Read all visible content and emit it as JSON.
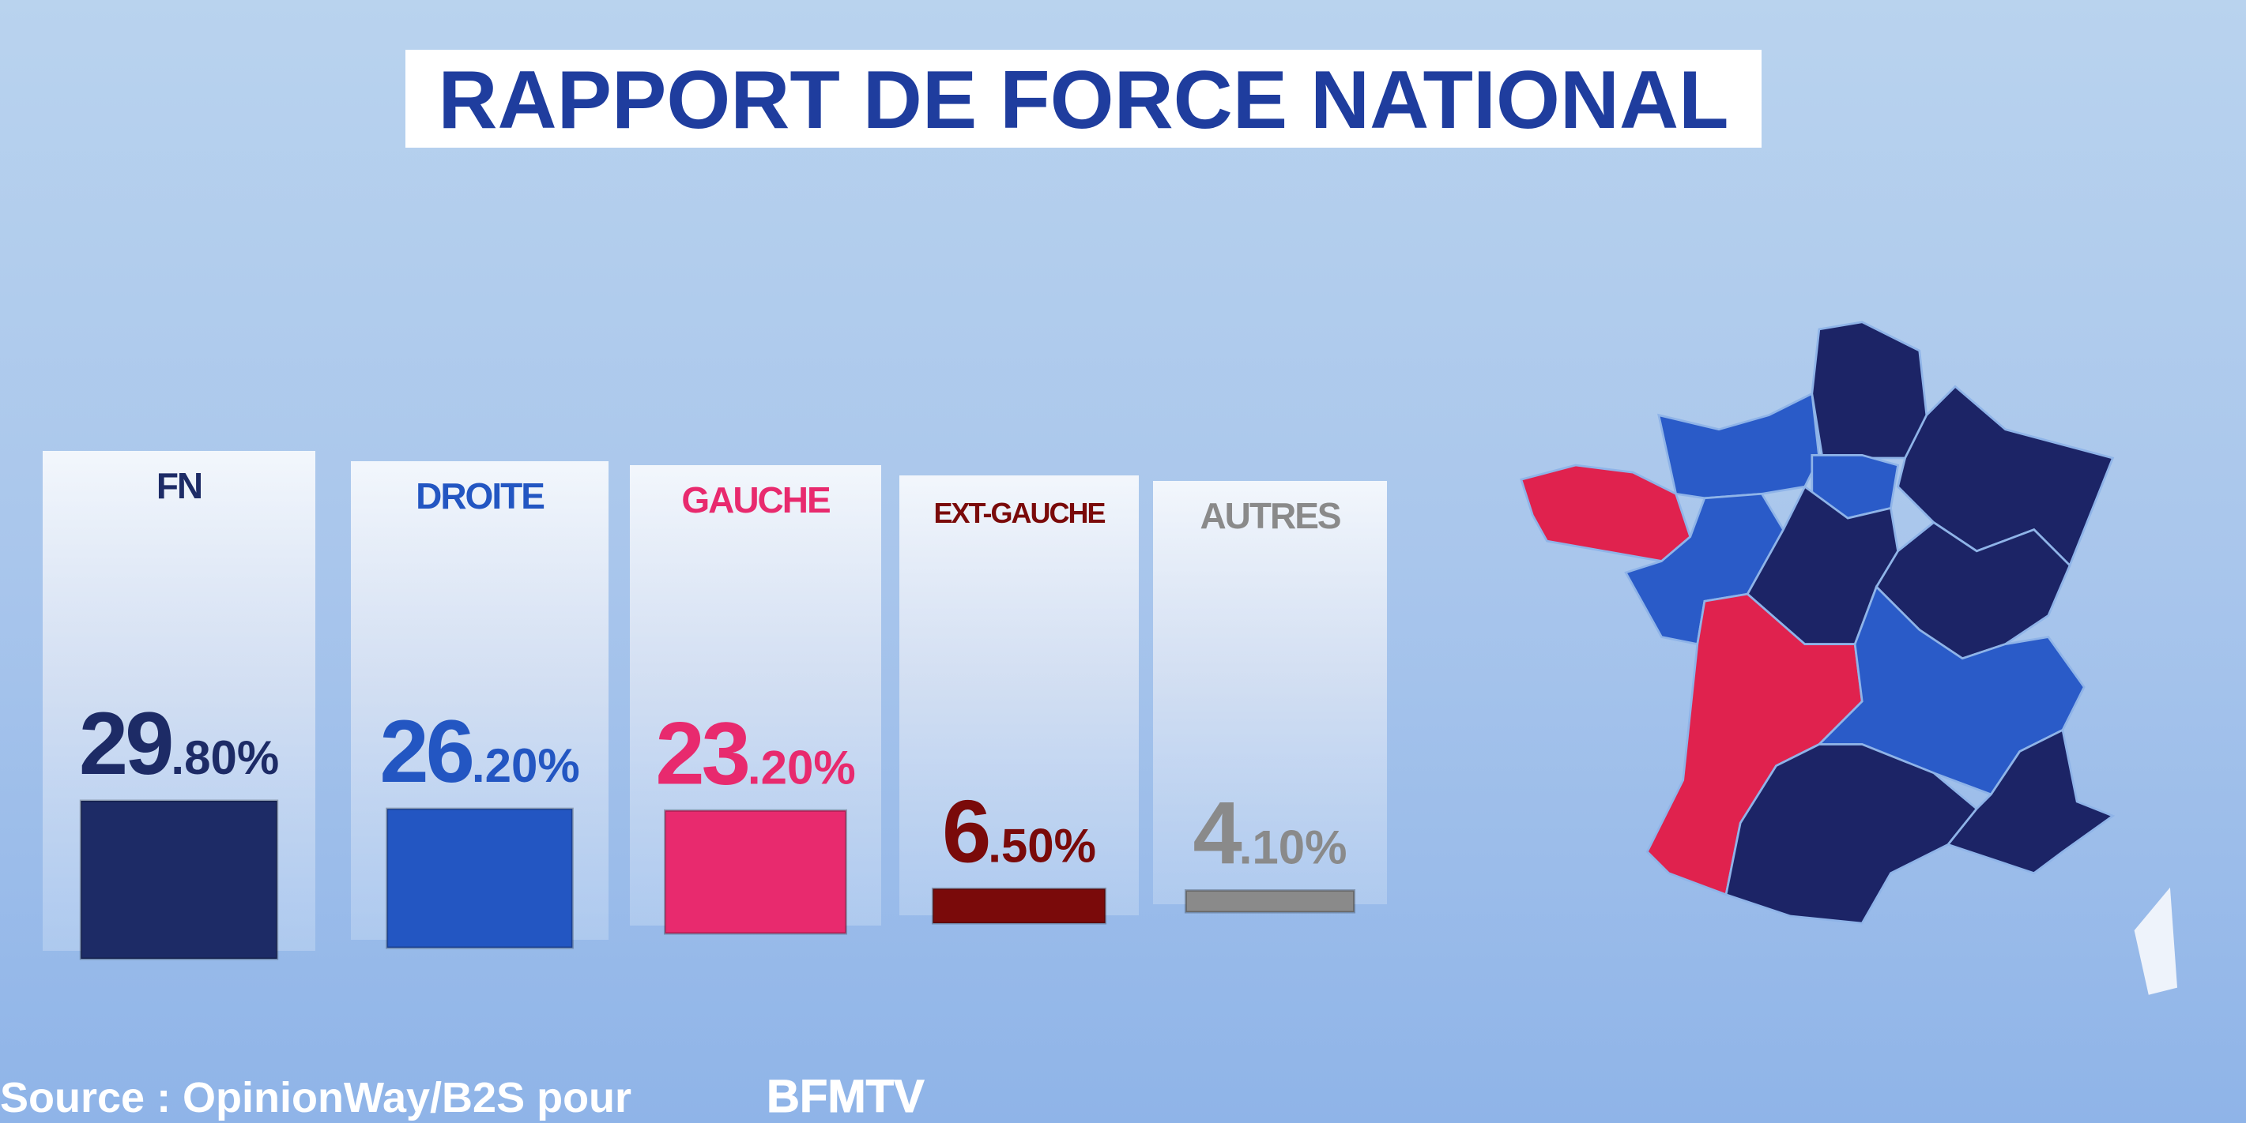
{
  "chart_data": {
    "type": "bar",
    "title": "RAPPORT DE FORCE NATIONAL",
    "categories": [
      "FN",
      "DROITE",
      "GAUCHE",
      "EXT-GAUCHE",
      "AUTRES"
    ],
    "values": [
      29.8,
      26.2,
      23.2,
      6.5,
      4.1
    ],
    "value_labels": [
      "29.80%",
      "26.20%",
      "23.20%",
      "6.50%",
      "4.10%"
    ],
    "colors": [
      "#1d2b66",
      "#2356c2",
      "#e82a6e",
      "#7a0a0a",
      "#8a8a8a"
    ],
    "source": "Source : OpinionWay/B2S pour",
    "brand": "BFMTV"
  }
}
